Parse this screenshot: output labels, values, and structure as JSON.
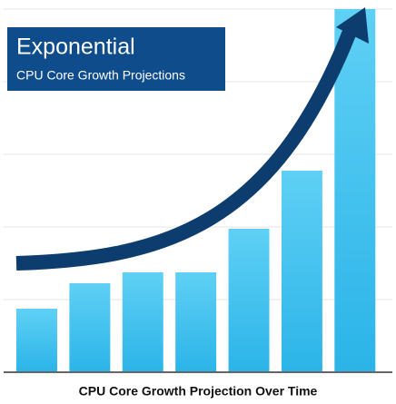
{
  "chart_data": {
    "type": "bar",
    "title": "Exponential",
    "subtitle": "CPU Core Growth Projections",
    "x_label": "CPU Core Growth Projection Over Time",
    "categories": [
      null,
      null,
      null,
      null,
      null,
      null,
      null
    ],
    "values": [
      70,
      98,
      110,
      110,
      158,
      222,
      400
    ],
    "color": "#3dc0ee",
    "ylim": [
      0,
      400
    ],
    "yticks": [
      0,
      80,
      160,
      240,
      320,
      400
    ],
    "grid": true
  }
}
